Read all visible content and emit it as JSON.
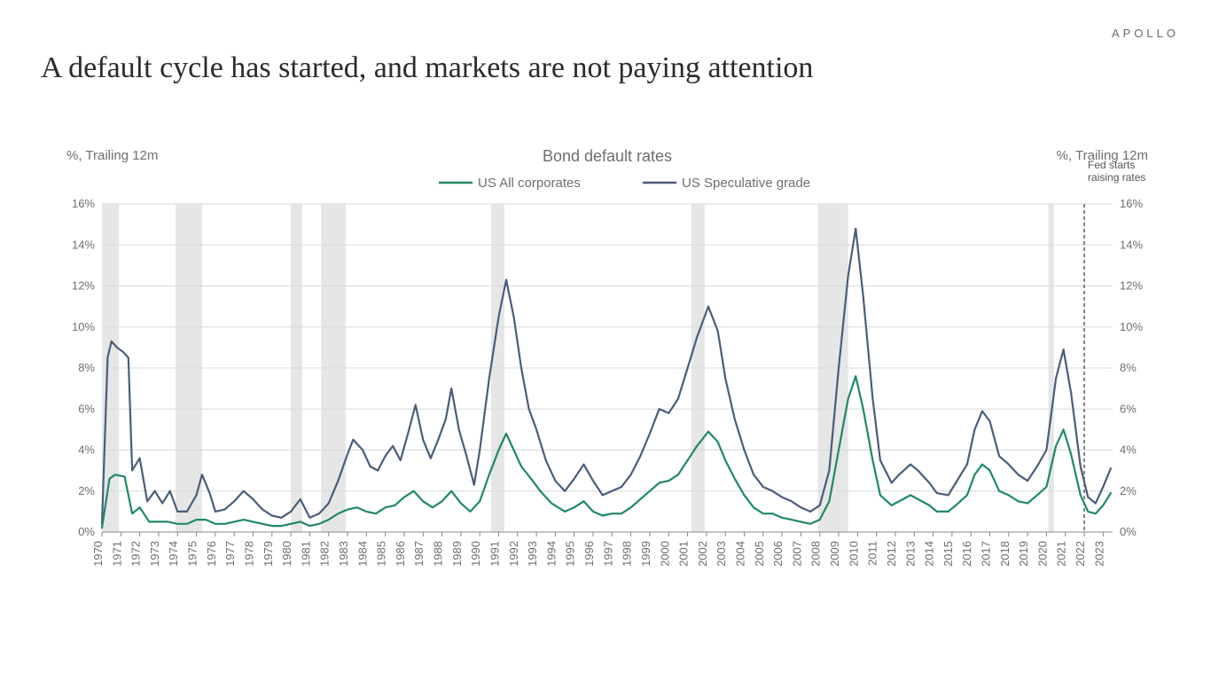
{
  "brand": "APOLLO",
  "title": "A default cycle has started, and markets are not paying attention",
  "chart": {
    "type": "line",
    "subtitle": "Bond default rates",
    "y_axis_label_left": "%, Trailing 12m",
    "y_axis_label_right": "%, Trailing 12m",
    "annotation": {
      "text_line1": "Fed starts",
      "text_line2": "raising rates",
      "x": 2022.0
    },
    "legend": {
      "series1": "US All corporates",
      "series2": "US Speculative grade"
    },
    "colors": {
      "series1": "#1f8a5f",
      "series2": "#4a5d7a",
      "gridline": "#d9d9d9",
      "axis": "#888888",
      "recession_band": "#d9d9d9",
      "background": "#ffffff",
      "vline": "#333333"
    },
    "line_width": 2.2,
    "x": {
      "min": 1970,
      "max": 2023.5,
      "ticks": [
        1970,
        1971,
        1972,
        1973,
        1974,
        1975,
        1976,
        1977,
        1978,
        1979,
        1980,
        1981,
        1982,
        1983,
        1984,
        1985,
        1986,
        1987,
        1988,
        1989,
        1990,
        1991,
        1992,
        1993,
        1994,
        1995,
        1996,
        1997,
        1998,
        1999,
        2000,
        2001,
        2002,
        2003,
        2004,
        2005,
        2006,
        2007,
        2008,
        2009,
        2010,
        2011,
        2012,
        2013,
        2014,
        2015,
        2016,
        2017,
        2018,
        2019,
        2020,
        2021,
        2022,
        2023
      ]
    },
    "y": {
      "min": 0,
      "max": 16,
      "ticks": [
        0,
        2,
        4,
        6,
        8,
        10,
        12,
        14,
        16
      ],
      "tick_labels": [
        "0%",
        "2%",
        "4%",
        "6%",
        "8%",
        "10%",
        "12%",
        "14%",
        "16%"
      ]
    },
    "recession_bands": [
      [
        1970.0,
        1970.9
      ],
      [
        1973.9,
        1975.3
      ],
      [
        1980.0,
        1980.6
      ],
      [
        1981.6,
        1982.9
      ],
      [
        1990.6,
        1991.3
      ],
      [
        2001.2,
        2001.9
      ],
      [
        2007.9,
        2009.5
      ],
      [
        2020.1,
        2020.4
      ]
    ],
    "series1_data": [
      [
        1970.0,
        0.2
      ],
      [
        1970.4,
        2.6
      ],
      [
        1970.7,
        2.8
      ],
      [
        1971.2,
        2.7
      ],
      [
        1971.6,
        0.9
      ],
      [
        1972.0,
        1.2
      ],
      [
        1972.5,
        0.5
      ],
      [
        1973.0,
        0.5
      ],
      [
        1973.5,
        0.5
      ],
      [
        1974.0,
        0.4
      ],
      [
        1974.5,
        0.4
      ],
      [
        1975.0,
        0.6
      ],
      [
        1975.5,
        0.6
      ],
      [
        1976.0,
        0.4
      ],
      [
        1976.5,
        0.4
      ],
      [
        1977.0,
        0.5
      ],
      [
        1977.5,
        0.6
      ],
      [
        1978.0,
        0.5
      ],
      [
        1978.5,
        0.4
      ],
      [
        1979.0,
        0.3
      ],
      [
        1979.5,
        0.3
      ],
      [
        1980.0,
        0.4
      ],
      [
        1980.5,
        0.5
      ],
      [
        1981.0,
        0.3
      ],
      [
        1981.5,
        0.4
      ],
      [
        1982.0,
        0.6
      ],
      [
        1982.5,
        0.9
      ],
      [
        1983.0,
        1.1
      ],
      [
        1983.5,
        1.2
      ],
      [
        1984.0,
        1.0
      ],
      [
        1984.5,
        0.9
      ],
      [
        1985.0,
        1.2
      ],
      [
        1985.5,
        1.3
      ],
      [
        1986.0,
        1.7
      ],
      [
        1986.5,
        2.0
      ],
      [
        1987.0,
        1.5
      ],
      [
        1987.5,
        1.2
      ],
      [
        1988.0,
        1.5
      ],
      [
        1988.5,
        2.0
      ],
      [
        1989.0,
        1.4
      ],
      [
        1989.5,
        1.0
      ],
      [
        1990.0,
        1.5
      ],
      [
        1990.5,
        2.8
      ],
      [
        1991.0,
        4.0
      ],
      [
        1991.4,
        4.8
      ],
      [
        1991.8,
        4.0
      ],
      [
        1992.2,
        3.2
      ],
      [
        1992.8,
        2.5
      ],
      [
        1993.2,
        2.0
      ],
      [
        1993.8,
        1.4
      ],
      [
        1994.5,
        1.0
      ],
      [
        1995.0,
        1.2
      ],
      [
        1995.5,
        1.5
      ],
      [
        1996.0,
        1.0
      ],
      [
        1996.5,
        0.8
      ],
      [
        1997.0,
        0.9
      ],
      [
        1997.5,
        0.9
      ],
      [
        1998.0,
        1.2
      ],
      [
        1998.5,
        1.6
      ],
      [
        1999.0,
        2.0
      ],
      [
        1999.5,
        2.4
      ],
      [
        2000.0,
        2.5
      ],
      [
        2000.5,
        2.8
      ],
      [
        2001.0,
        3.5
      ],
      [
        2001.5,
        4.2
      ],
      [
        2002.1,
        4.9
      ],
      [
        2002.6,
        4.4
      ],
      [
        2003.0,
        3.5
      ],
      [
        2003.5,
        2.6
      ],
      [
        2004.0,
        1.8
      ],
      [
        2004.5,
        1.2
      ],
      [
        2005.0,
        0.9
      ],
      [
        2005.5,
        0.9
      ],
      [
        2006.0,
        0.7
      ],
      [
        2006.5,
        0.6
      ],
      [
        2007.0,
        0.5
      ],
      [
        2007.5,
        0.4
      ],
      [
        2008.0,
        0.6
      ],
      [
        2008.5,
        1.5
      ],
      [
        2009.0,
        4.0
      ],
      [
        2009.5,
        6.5
      ],
      [
        2009.9,
        7.6
      ],
      [
        2010.3,
        6.0
      ],
      [
        2010.8,
        3.5
      ],
      [
        2011.2,
        1.8
      ],
      [
        2011.8,
        1.3
      ],
      [
        2012.2,
        1.5
      ],
      [
        2012.8,
        1.8
      ],
      [
        2013.2,
        1.6
      ],
      [
        2013.8,
        1.3
      ],
      [
        2014.2,
        1.0
      ],
      [
        2014.8,
        1.0
      ],
      [
        2015.2,
        1.3
      ],
      [
        2015.8,
        1.8
      ],
      [
        2016.2,
        2.8
      ],
      [
        2016.6,
        3.3
      ],
      [
        2017.0,
        3.0
      ],
      [
        2017.5,
        2.0
      ],
      [
        2018.0,
        1.8
      ],
      [
        2018.5,
        1.5
      ],
      [
        2019.0,
        1.4
      ],
      [
        2019.5,
        1.8
      ],
      [
        2020.0,
        2.2
      ],
      [
        2020.5,
        4.2
      ],
      [
        2020.9,
        5.0
      ],
      [
        2021.3,
        3.8
      ],
      [
        2021.8,
        1.8
      ],
      [
        2022.2,
        1.0
      ],
      [
        2022.6,
        0.9
      ],
      [
        2023.0,
        1.3
      ],
      [
        2023.4,
        1.9
      ]
    ],
    "series2_data": [
      [
        1970.0,
        0.4
      ],
      [
        1970.3,
        8.5
      ],
      [
        1970.5,
        9.3
      ],
      [
        1970.8,
        9.0
      ],
      [
        1971.1,
        8.8
      ],
      [
        1971.4,
        8.5
      ],
      [
        1971.6,
        3.0
      ],
      [
        1972.0,
        3.6
      ],
      [
        1972.4,
        1.5
      ],
      [
        1972.8,
        2.0
      ],
      [
        1973.2,
        1.4
      ],
      [
        1973.6,
        2.0
      ],
      [
        1974.0,
        1.0
      ],
      [
        1974.5,
        1.0
      ],
      [
        1975.0,
        1.8
      ],
      [
        1975.3,
        2.8
      ],
      [
        1975.7,
        1.9
      ],
      [
        1976.0,
        1.0
      ],
      [
        1976.5,
        1.1
      ],
      [
        1977.0,
        1.5
      ],
      [
        1977.5,
        2.0
      ],
      [
        1978.0,
        1.6
      ],
      [
        1978.5,
        1.1
      ],
      [
        1979.0,
        0.8
      ],
      [
        1979.5,
        0.7
      ],
      [
        1980.0,
        1.0
      ],
      [
        1980.5,
        1.6
      ],
      [
        1981.0,
        0.7
      ],
      [
        1981.5,
        0.9
      ],
      [
        1982.0,
        1.4
      ],
      [
        1982.5,
        2.5
      ],
      [
        1983.0,
        3.8
      ],
      [
        1983.3,
        4.5
      ],
      [
        1983.8,
        4.0
      ],
      [
        1984.2,
        3.2
      ],
      [
        1984.6,
        3.0
      ],
      [
        1985.0,
        3.7
      ],
      [
        1985.4,
        4.2
      ],
      [
        1985.8,
        3.5
      ],
      [
        1986.2,
        4.8
      ],
      [
        1986.6,
        6.2
      ],
      [
        1987.0,
        4.5
      ],
      [
        1987.4,
        3.6
      ],
      [
        1987.8,
        4.5
      ],
      [
        1988.2,
        5.5
      ],
      [
        1988.5,
        7.0
      ],
      [
        1988.9,
        5.0
      ],
      [
        1989.3,
        3.7
      ],
      [
        1989.7,
        2.3
      ],
      [
        1990.0,
        4.0
      ],
      [
        1990.5,
        7.5
      ],
      [
        1991.0,
        10.5
      ],
      [
        1991.4,
        12.3
      ],
      [
        1991.8,
        10.5
      ],
      [
        1992.2,
        8.0
      ],
      [
        1992.6,
        6.0
      ],
      [
        1993.0,
        5.0
      ],
      [
        1993.5,
        3.5
      ],
      [
        1994.0,
        2.5
      ],
      [
        1994.5,
        2.0
      ],
      [
        1995.0,
        2.6
      ],
      [
        1995.5,
        3.3
      ],
      [
        1996.0,
        2.5
      ],
      [
        1996.5,
        1.8
      ],
      [
        1997.0,
        2.0
      ],
      [
        1997.5,
        2.2
      ],
      [
        1998.0,
        2.8
      ],
      [
        1998.5,
        3.7
      ],
      [
        1999.0,
        4.8
      ],
      [
        1999.5,
        6.0
      ],
      [
        2000.0,
        5.8
      ],
      [
        2000.5,
        6.5
      ],
      [
        2001.0,
        8.0
      ],
      [
        2001.5,
        9.5
      ],
      [
        2002.1,
        11.0
      ],
      [
        2002.6,
        9.8
      ],
      [
        2003.0,
        7.5
      ],
      [
        2003.5,
        5.5
      ],
      [
        2004.0,
        4.0
      ],
      [
        2004.5,
        2.8
      ],
      [
        2005.0,
        2.2
      ],
      [
        2005.5,
        2.0
      ],
      [
        2006.0,
        1.7
      ],
      [
        2006.5,
        1.5
      ],
      [
        2007.0,
        1.2
      ],
      [
        2007.5,
        1.0
      ],
      [
        2008.0,
        1.3
      ],
      [
        2008.5,
        3.0
      ],
      [
        2009.0,
        8.0
      ],
      [
        2009.5,
        12.5
      ],
      [
        2009.9,
        14.8
      ],
      [
        2010.3,
        11.5
      ],
      [
        2010.8,
        6.5
      ],
      [
        2011.2,
        3.5
      ],
      [
        2011.8,
        2.4
      ],
      [
        2012.2,
        2.8
      ],
      [
        2012.8,
        3.3
      ],
      [
        2013.2,
        3.0
      ],
      [
        2013.8,
        2.4
      ],
      [
        2014.2,
        1.9
      ],
      [
        2014.8,
        1.8
      ],
      [
        2015.2,
        2.4
      ],
      [
        2015.8,
        3.3
      ],
      [
        2016.2,
        5.0
      ],
      [
        2016.6,
        5.9
      ],
      [
        2017.0,
        5.4
      ],
      [
        2017.5,
        3.7
      ],
      [
        2018.0,
        3.3
      ],
      [
        2018.5,
        2.8
      ],
      [
        2019.0,
        2.5
      ],
      [
        2019.5,
        3.2
      ],
      [
        2020.0,
        4.0
      ],
      [
        2020.5,
        7.5
      ],
      [
        2020.9,
        8.9
      ],
      [
        2021.3,
        6.8
      ],
      [
        2021.8,
        3.2
      ],
      [
        2022.2,
        1.7
      ],
      [
        2022.6,
        1.4
      ],
      [
        2023.0,
        2.2
      ],
      [
        2023.4,
        3.1
      ]
    ]
  }
}
